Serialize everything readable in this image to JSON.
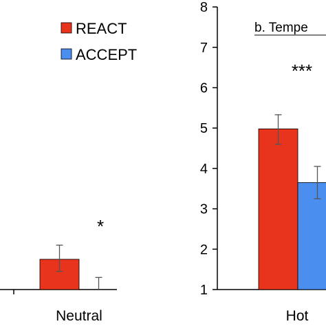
{
  "chart_data": [
    {
      "type": "bar",
      "title": "",
      "categories": [
        "Neutral"
      ],
      "series": [
        {
          "name": "REACT",
          "values": [
            1.75
          ],
          "err_low": [
            0.3
          ],
          "err_high": [
            0.35
          ]
        },
        {
          "name": "ACCEPT",
          "values": [
            1.0
          ],
          "err_low": [
            0.0
          ],
          "err_high": [
            0.3
          ]
        }
      ],
      "annotations": [
        "*"
      ],
      "legend": {
        "placement": "top-right",
        "entries": [
          "REACT",
          "ACCEPT"
        ]
      },
      "xlabel": "",
      "ylabel": ""
    },
    {
      "type": "bar",
      "title": "b. Tempe",
      "categories": [
        "Hot"
      ],
      "series": [
        {
          "name": "REACT",
          "values": [
            4.98
          ],
          "err_low": [
            0.38
          ],
          "err_high": [
            0.35
          ]
        },
        {
          "name": "ACCEPT",
          "values": [
            3.65
          ],
          "err_low": [
            0.4
          ],
          "err_high": [
            0.4
          ]
        }
      ],
      "annotations": [
        "***"
      ],
      "ylim": [
        1,
        8
      ],
      "yticks": [
        "1",
        "2",
        "3",
        "4",
        "5",
        "6",
        "7",
        "8"
      ],
      "xlabel": "",
      "ylabel": ""
    }
  ],
  "colors": {
    "react": "#e8341c",
    "accept": "#4a8ef0"
  }
}
